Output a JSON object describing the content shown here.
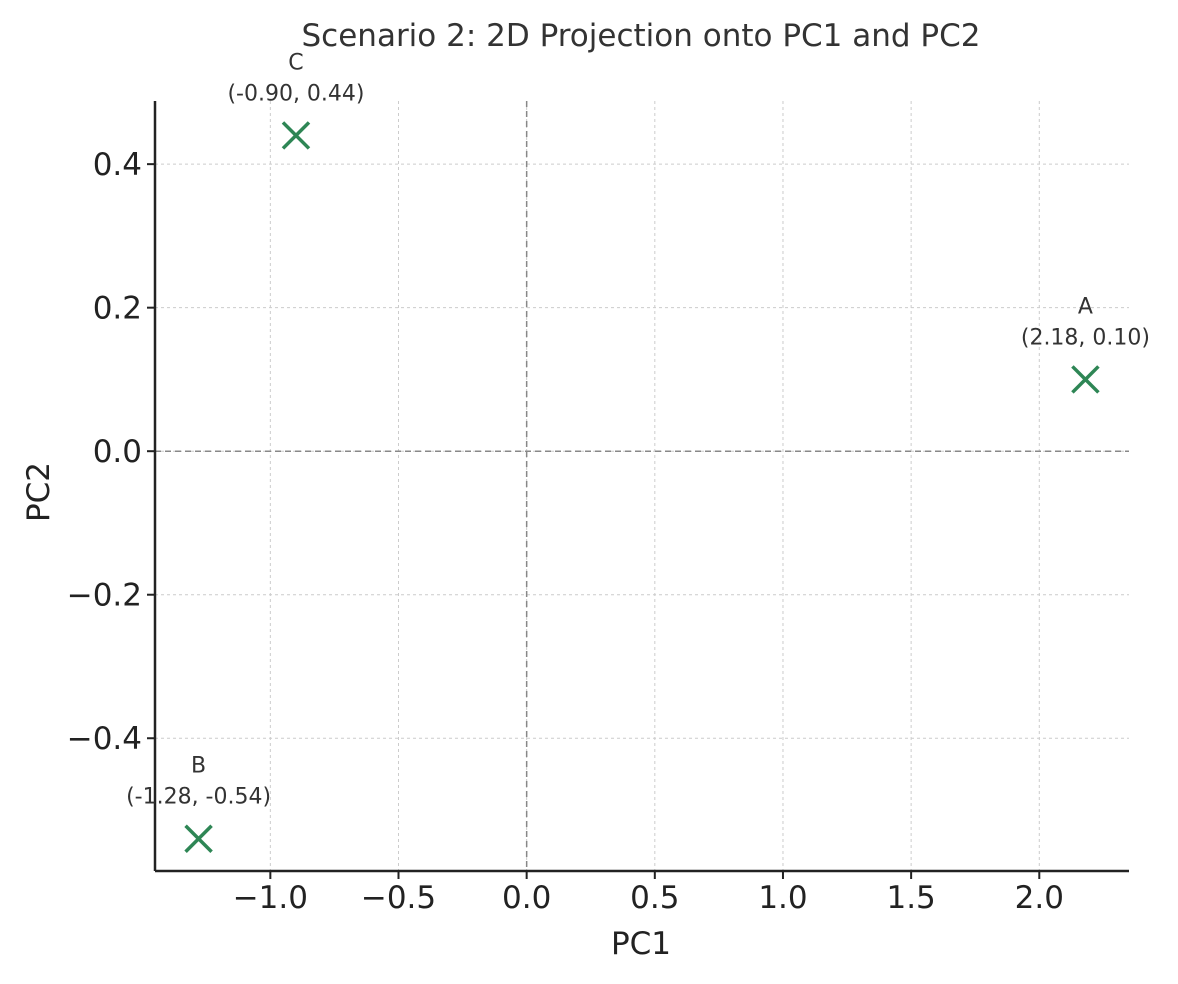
{
  "chart_data": {
    "type": "scatter",
    "title": "Scenario 2: 2D Projection onto PC1 and PC2",
    "xlabel": "PC1",
    "ylabel": "PC2",
    "xlim": [
      -1.45,
      2.35
    ],
    "ylim": [
      -0.585,
      0.488
    ],
    "xticks": [
      -1.0,
      -0.5,
      0.0,
      0.5,
      1.0,
      1.5,
      2.0
    ],
    "xtick_labels": [
      "−1.0",
      "−0.5",
      "0.0",
      "0.5",
      "1.0",
      "1.5",
      "2.0"
    ],
    "yticks": [
      -0.4,
      -0.2,
      0.0,
      0.2,
      0.4
    ],
    "ytick_labels": [
      "−0.4",
      "−0.2",
      "0.0",
      "0.2",
      "0.4"
    ],
    "grid": true,
    "zero_lines": true,
    "marker": "x",
    "marker_color": "#2e8655",
    "points": [
      {
        "name": "A",
        "x": 2.18,
        "y": 0.1,
        "coord_label": "(2.18, 0.10)"
      },
      {
        "name": "B",
        "x": -1.28,
        "y": -0.54,
        "coord_label": "(-1.28, -0.54)"
      },
      {
        "name": "C",
        "x": -0.9,
        "y": 0.44,
        "coord_label": "(-0.90, 0.44)"
      }
    ]
  }
}
